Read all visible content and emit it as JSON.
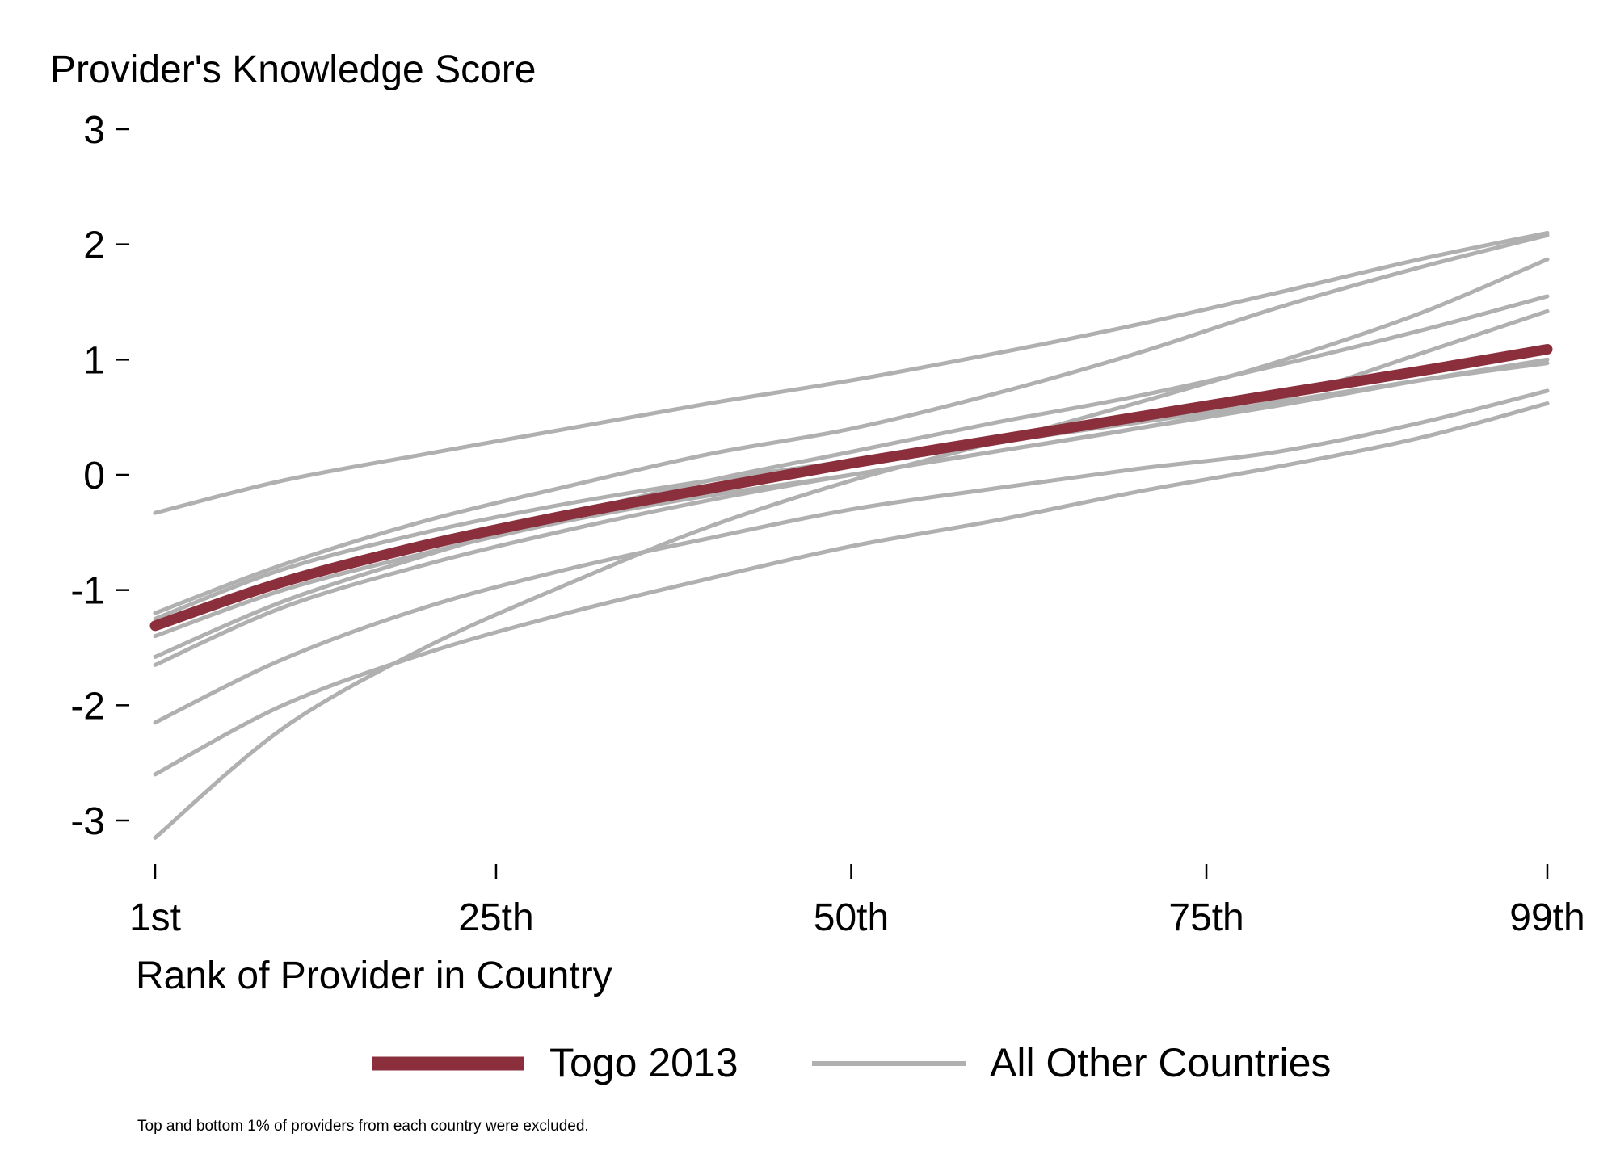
{
  "chart_data": {
    "type": "line",
    "title": "",
    "ylabel": "Provider's Knowledge Score",
    "xlabel": "Rank of Provider in Country",
    "ylim": [
      -3.3,
      3
    ],
    "xlim": [
      1,
      99
    ],
    "grid": false,
    "legend_position": "bottom",
    "x_ticks": [
      {
        "value": 1,
        "label": "1st"
      },
      {
        "value": 25,
        "label": "25th"
      },
      {
        "value": 50,
        "label": "50th"
      },
      {
        "value": 75,
        "label": "75th"
      },
      {
        "value": 99,
        "label": "99th"
      }
    ],
    "y_ticks": [
      {
        "value": 3,
        "label": "3"
      },
      {
        "value": 2,
        "label": "2"
      },
      {
        "value": 1,
        "label": "1"
      },
      {
        "value": 0,
        "label": "0"
      },
      {
        "value": -1,
        "label": "-1"
      },
      {
        "value": -2,
        "label": "-2"
      },
      {
        "value": -3,
        "label": "-3"
      }
    ],
    "x": [
      1,
      10,
      20,
      30,
      40,
      50,
      60,
      70,
      80,
      90,
      99
    ],
    "highlight_series": {
      "name": "Togo 2013",
      "color": "#8b2f3c",
      "values": [
        -1.31,
        -0.93,
        -0.61,
        -0.35,
        -0.12,
        0.1,
        0.3,
        0.5,
        0.7,
        0.9,
        1.09
      ]
    },
    "other_series_name": "All Other Countries",
    "other_series_color": "#b0b0b0",
    "other_series": [
      {
        "values": [
          -0.33,
          -0.05,
          0.18,
          0.4,
          0.62,
          0.82,
          1.05,
          1.3,
          1.58,
          1.87,
          2.1
        ]
      },
      {
        "values": [
          -1.2,
          -0.78,
          -0.4,
          -0.1,
          0.18,
          0.4,
          0.7,
          1.05,
          1.45,
          1.8,
          2.08
        ]
      },
      {
        "values": [
          -1.58,
          -1.1,
          -0.7,
          -0.35,
          -0.05,
          0.2,
          0.45,
          0.68,
          0.95,
          1.25,
          1.55
        ]
      },
      {
        "values": [
          -3.15,
          -2.2,
          -1.5,
          -0.95,
          -0.45,
          -0.05,
          0.28,
          0.62,
          0.98,
          1.4,
          1.87
        ]
      },
      {
        "values": [
          -1.4,
          -1.0,
          -0.68,
          -0.4,
          -0.18,
          0.0,
          0.2,
          0.4,
          0.65,
          1.05,
          1.42
        ]
      },
      {
        "values": [
          -1.65,
          -1.15,
          -0.78,
          -0.48,
          -0.22,
          0.0,
          0.2,
          0.4,
          0.6,
          0.82,
          1.0
        ]
      },
      {
        "values": [
          -1.25,
          -0.82,
          -0.5,
          -0.25,
          -0.05,
          0.12,
          0.28,
          0.45,
          0.63,
          0.82,
          0.97
        ]
      },
      {
        "values": [
          -2.15,
          -1.6,
          -1.15,
          -0.82,
          -0.55,
          -0.3,
          -0.12,
          0.05,
          0.2,
          0.45,
          0.73
        ]
      },
      {
        "values": [
          -2.6,
          -2.0,
          -1.55,
          -1.2,
          -0.9,
          -0.62,
          -0.4,
          -0.15,
          0.07,
          0.32,
          0.62
        ]
      }
    ]
  },
  "footnote": "Top and bottom 1% of providers from each country were excluded."
}
